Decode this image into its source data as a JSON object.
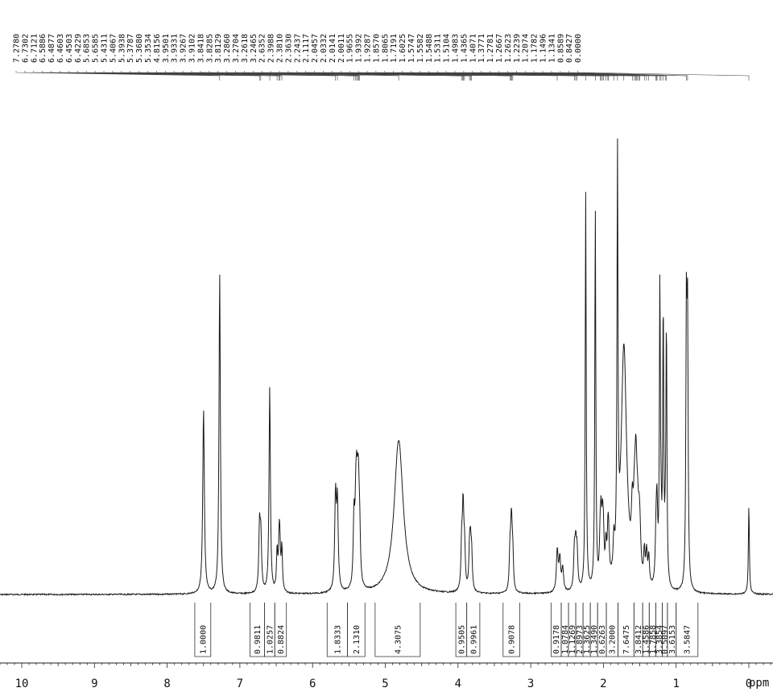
{
  "chart_data": {
    "type": "line",
    "x_unit": "ppm",
    "x_axis": {
      "reversed": true,
      "range": [
        -0.35,
        10.45
      ],
      "major_ticks": [
        10,
        9,
        8,
        7,
        6,
        5,
        4,
        3,
        2,
        1,
        0
      ],
      "tick_labels": [
        "10",
        "9",
        "8",
        "7",
        "6",
        "5",
        "4",
        "3",
        "2",
        "1",
        "0"
      ]
    },
    "peak_labels": [
      "7.2780",
      "6.7302",
      "6.7121",
      "6.5886",
      "6.4877",
      "6.4603",
      "6.4503",
      "6.4229",
      "5.6853",
      "5.6585",
      "5.4311",
      "5.4067",
      "5.3938",
      "5.3787",
      "5.3680",
      "5.3534",
      "4.8156",
      "3.9501",
      "3.9331",
      "3.9267",
      "3.9102",
      "3.8418",
      "3.8285",
      "3.8129",
      "3.2860",
      "3.2704",
      "3.2618",
      "3.2465",
      "2.6352",
      "2.3988",
      "2.3810",
      "2.3630",
      "2.2437",
      "2.1117",
      "2.0457",
      "2.0332",
      "2.0141",
      "2.0011",
      "1.9655",
      "1.9392",
      "1.9287",
      "1.8570",
      "1.8065",
      "1.7191",
      "1.6025",
      "1.5747",
      "1.5582",
      "1.5488",
      "1.5311",
      "1.5104",
      "1.4983",
      "1.4365",
      "1.4071",
      "1.3771",
      "1.2781",
      "1.2667",
      "1.2623",
      "1.2239",
      "1.2074",
      "1.1782",
      "1.1496",
      "1.1341",
      "0.8589",
      "0.8427",
      "0.0000"
    ],
    "integrals": [
      {
        "label": "1.0000",
        "from": 7.62,
        "to": 7.4
      },
      {
        "label": "0.9811",
        "from": 6.86,
        "to": 6.66
      },
      {
        "label": "1.0257",
        "from": 6.66,
        "to": 6.52
      },
      {
        "label": "0.8824",
        "from": 6.52,
        "to": 6.36
      },
      {
        "label": "1.8333",
        "from": 5.8,
        "to": 5.52
      },
      {
        "label": "2.1310",
        "from": 5.52,
        "to": 5.28
      },
      {
        "label": "4.3075",
        "from": 5.14,
        "to": 4.52
      },
      {
        "label": "0.9505",
        "from": 4.03,
        "to": 3.88
      },
      {
        "label": "0.9961",
        "from": 3.88,
        "to": 3.7
      },
      {
        "label": "0.9078",
        "from": 3.38,
        "to": 3.15
      },
      {
        "label": "0.9178",
        "from": 2.72,
        "to": 2.58
      },
      {
        "label": "1.0784",
        "from": 2.58,
        "to": 2.48
      },
      {
        "label": "1.1269",
        "from": 2.48,
        "to": 2.38
      },
      {
        "label": "2.8973",
        "from": 2.38,
        "to": 2.28
      },
      {
        "label": "1.3625",
        "from": 2.28,
        "to": 2.18
      },
      {
        "label": "1.3490",
        "from": 2.18,
        "to": 2.08
      },
      {
        "label": "0.6263",
        "from": 2.08,
        "to": 1.96
      },
      {
        "label": "3.2000",
        "from": 1.96,
        "to": 1.8
      },
      {
        "label": "7.6475",
        "from": 1.8,
        "to": 1.58
      },
      {
        "label": "3.8412",
        "from": 1.58,
        "to": 1.46
      },
      {
        "label": "1.4586",
        "from": 1.46,
        "to": 1.37
      },
      {
        "label": "1.7858",
        "from": 1.37,
        "to": 1.28
      },
      {
        "label": "3.3854",
        "from": 1.28,
        "to": 1.19
      },
      {
        "label": "0.5097",
        "from": 1.19,
        "to": 1.12
      },
      {
        "label": "3.6153",
        "from": 1.12,
        "to": 1.0
      },
      {
        "label": "3.5847",
        "from": 1.0,
        "to": 0.7
      }
    ],
    "peaks": [
      {
        "ppm": 7.5,
        "height": 0.575,
        "width": 0.013
      },
      {
        "ppm": 7.278,
        "height": 1.0,
        "width": 0.011
      },
      {
        "ppm": 6.73,
        "height": 0.195,
        "width": 0.012
      },
      {
        "ppm": 6.712,
        "height": 0.165,
        "width": 0.012
      },
      {
        "ppm": 6.59,
        "height": 0.64,
        "width": 0.011
      },
      {
        "ppm": 6.488,
        "height": 0.125,
        "width": 0.01
      },
      {
        "ppm": 6.46,
        "height": 0.145,
        "width": 0.01
      },
      {
        "ppm": 6.45,
        "height": 0.11,
        "width": 0.01
      },
      {
        "ppm": 6.423,
        "height": 0.135,
        "width": 0.01
      },
      {
        "ppm": 5.685,
        "height": 0.29,
        "width": 0.013
      },
      {
        "ppm": 5.659,
        "height": 0.265,
        "width": 0.013
      },
      {
        "ppm": 5.431,
        "height": 0.21,
        "width": 0.012
      },
      {
        "ppm": 5.407,
        "height": 0.19,
        "width": 0.012
      },
      {
        "ppm": 5.394,
        "height": 0.22,
        "width": 0.012
      },
      {
        "ppm": 5.379,
        "height": 0.17,
        "width": 0.012
      },
      {
        "ppm": 5.368,
        "height": 0.2,
        "width": 0.012
      },
      {
        "ppm": 5.353,
        "height": 0.15,
        "width": 0.012
      },
      {
        "ppm": 4.816,
        "height": 0.48,
        "width": 0.075
      },
      {
        "ppm": 3.95,
        "height": 0.14,
        "width": 0.011
      },
      {
        "ppm": 3.933,
        "height": 0.14,
        "width": 0.011
      },
      {
        "ppm": 3.927,
        "height": 0.13,
        "width": 0.011
      },
      {
        "ppm": 3.91,
        "height": 0.12,
        "width": 0.011
      },
      {
        "ppm": 3.842,
        "height": 0.115,
        "width": 0.011
      },
      {
        "ppm": 3.829,
        "height": 0.12,
        "width": 0.011
      },
      {
        "ppm": 3.813,
        "height": 0.11,
        "width": 0.011
      },
      {
        "ppm": 3.286,
        "height": 0.115,
        "width": 0.011
      },
      {
        "ppm": 3.27,
        "height": 0.125,
        "width": 0.011
      },
      {
        "ppm": 3.262,
        "height": 0.12,
        "width": 0.011
      },
      {
        "ppm": 3.247,
        "height": 0.105,
        "width": 0.011
      },
      {
        "ppm": 2.635,
        "height": 0.13,
        "width": 0.014
      },
      {
        "ppm": 2.6,
        "height": 0.1,
        "width": 0.014
      },
      {
        "ppm": 2.56,
        "height": 0.07,
        "width": 0.014
      },
      {
        "ppm": 2.399,
        "height": 0.12,
        "width": 0.012
      },
      {
        "ppm": 2.381,
        "height": 0.12,
        "width": 0.012
      },
      {
        "ppm": 2.363,
        "height": 0.11,
        "width": 0.012
      },
      {
        "ppm": 2.244,
        "height": 1.24,
        "width": 0.008
      },
      {
        "ppm": 2.112,
        "height": 1.18,
        "width": 0.008
      },
      {
        "ppm": 2.046,
        "height": 0.12,
        "width": 0.011
      },
      {
        "ppm": 2.033,
        "height": 0.17,
        "width": 0.011
      },
      {
        "ppm": 2.014,
        "height": 0.15,
        "width": 0.011
      },
      {
        "ppm": 2.001,
        "height": 0.13,
        "width": 0.011
      },
      {
        "ppm": 1.966,
        "height": 0.11,
        "width": 0.011
      },
      {
        "ppm": 1.939,
        "height": 0.12,
        "width": 0.011
      },
      {
        "ppm": 1.929,
        "height": 0.11,
        "width": 0.011
      },
      {
        "ppm": 1.857,
        "height": 0.1,
        "width": 0.011
      },
      {
        "ppm": 1.807,
        "height": 1.25,
        "width": 0.008
      },
      {
        "ppm": 1.719,
        "height": 0.76,
        "width": 0.045
      },
      {
        "ppm": 1.603,
        "height": 0.17,
        "width": 0.015
      },
      {
        "ppm": 1.575,
        "height": 0.16,
        "width": 0.015
      },
      {
        "ppm": 1.558,
        "height": 0.18,
        "width": 0.015
      },
      {
        "ppm": 1.549,
        "height": 0.16,
        "width": 0.015
      },
      {
        "ppm": 1.531,
        "height": 0.14,
        "width": 0.015
      },
      {
        "ppm": 1.51,
        "height": 0.12,
        "width": 0.015
      },
      {
        "ppm": 1.498,
        "height": 0.1,
        "width": 0.015
      },
      {
        "ppm": 1.437,
        "height": 0.1,
        "width": 0.011
      },
      {
        "ppm": 1.407,
        "height": 0.1,
        "width": 0.011
      },
      {
        "ppm": 1.377,
        "height": 0.09,
        "width": 0.011
      },
      {
        "ppm": 1.278,
        "height": 0.12,
        "width": 0.011
      },
      {
        "ppm": 1.267,
        "height": 0.13,
        "width": 0.011
      },
      {
        "ppm": 1.262,
        "height": 0.12,
        "width": 0.011
      },
      {
        "ppm": 1.224,
        "height": 0.93,
        "width": 0.008
      },
      {
        "ppm": 1.207,
        "height": 0.12,
        "width": 0.009
      },
      {
        "ppm": 1.178,
        "height": 0.86,
        "width": 0.008
      },
      {
        "ppm": 1.15,
        "height": 0.1,
        "width": 0.009
      },
      {
        "ppm": 1.134,
        "height": 0.81,
        "width": 0.008
      },
      {
        "ppm": 0.859,
        "height": 0.83,
        "width": 0.009
      },
      {
        "ppm": 0.843,
        "height": 0.78,
        "width": 0.009
      },
      {
        "ppm": 0.0,
        "height": 0.28,
        "width": 0.008
      }
    ]
  }
}
